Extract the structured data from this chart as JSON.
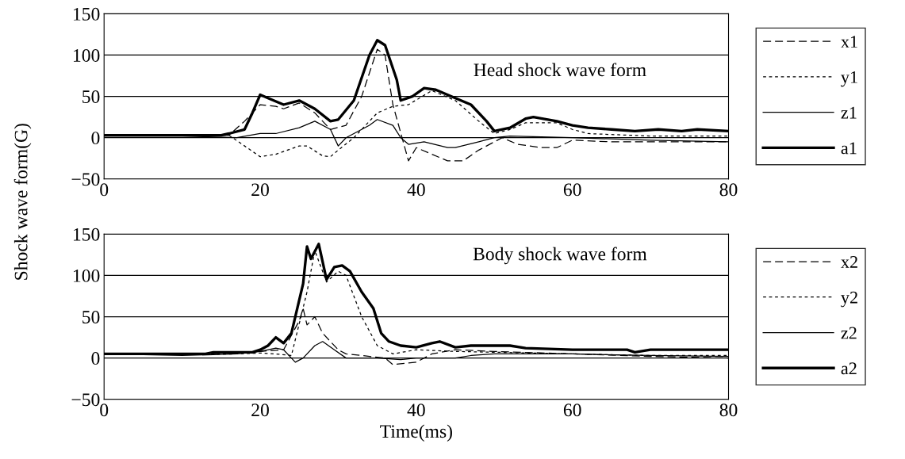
{
  "chart_data": [
    {
      "type": "line",
      "title": "Head shock wave form",
      "ylabel": "Shock wave form(G)",
      "xlim": [
        0,
        80
      ],
      "ylim": [
        -50,
        150
      ],
      "xticks": [
        0,
        20,
        40,
        60,
        80
      ],
      "yticks": [
        -50,
        0,
        50,
        100,
        150
      ],
      "grid": "y",
      "legend": "right",
      "marker": "none",
      "series": [
        {
          "name": "x1",
          "color": "#000000",
          "line_style": "dashed",
          "x": [
            0,
            10,
            16,
            18,
            20,
            22,
            23,
            25,
            27,
            29,
            31,
            33,
            35,
            36,
            37,
            39,
            40,
            42,
            44,
            46,
            48,
            51,
            53,
            56,
            58,
            60,
            65,
            70,
            80
          ],
          "values": [
            3,
            3,
            3,
            20,
            40,
            38,
            35,
            42,
            30,
            10,
            15,
            50,
            107,
            100,
            40,
            -28,
            -12,
            -20,
            -28,
            -28,
            -15,
            0,
            -8,
            -12,
            -12,
            -3,
            -5,
            -5,
            -5
          ]
        },
        {
          "name": "y1",
          "color": "#000000",
          "line_style": "dotted",
          "x": [
            0,
            10,
            16,
            18,
            20,
            22,
            25,
            26,
            28,
            29,
            30,
            32,
            35,
            37,
            39,
            42,
            45,
            48,
            50,
            52,
            54,
            58,
            60,
            62,
            70,
            80
          ],
          "values": [
            3,
            3,
            3,
            -10,
            -23,
            -20,
            -10,
            -10,
            -22,
            -23,
            -15,
            0,
            30,
            38,
            40,
            57,
            45,
            20,
            5,
            10,
            18,
            18,
            10,
            5,
            2,
            2
          ]
        },
        {
          "name": "z1",
          "color": "#000000",
          "line_style": "solid",
          "x": [
            0,
            10,
            17,
            20,
            22,
            25,
            27,
            29,
            30,
            31,
            34,
            35,
            37,
            38,
            39,
            41,
            44,
            45,
            48,
            50,
            52,
            60,
            70,
            80
          ],
          "values": [
            2,
            2,
            0,
            5,
            5,
            12,
            20,
            10,
            -10,
            0,
            15,
            22,
            15,
            0,
            -8,
            -5,
            -12,
            -12,
            -5,
            0,
            2,
            0,
            -3,
            -5
          ]
        },
        {
          "name": "a1",
          "color": "#000000",
          "line_style": "solid",
          "x": [
            0,
            15,
            16,
            18,
            19,
            20,
            21,
            23,
            25,
            27,
            29,
            30,
            32,
            34,
            35,
            36,
            37.5,
            38,
            39.5,
            41,
            42.5,
            45,
            47,
            49,
            50,
            52,
            54,
            55,
            58,
            60,
            62,
            65,
            68,
            71,
            74,
            76,
            80
          ],
          "values": [
            3,
            3,
            5,
            10,
            30,
            52,
            48,
            40,
            45,
            35,
            20,
            22,
            45,
            100,
            118,
            112,
            70,
            45,
            50,
            60,
            58,
            48,
            40,
            20,
            8,
            12,
            23,
            25,
            20,
            15,
            12,
            10,
            8,
            10,
            8,
            10,
            8
          ]
        }
      ]
    },
    {
      "type": "line",
      "title": "Body shock wave form",
      "xlabel": "Time(ms)",
      "xlim": [
        0,
        80
      ],
      "ylim": [
        -50,
        150
      ],
      "xticks": [
        0,
        20,
        40,
        60,
        80
      ],
      "yticks": [
        -50,
        0,
        50,
        100,
        150
      ],
      "grid": "y",
      "legend": "right",
      "marker": "none",
      "series": [
        {
          "name": "x2",
          "color": "#000000",
          "line_style": "dashed",
          "x": [
            0,
            10,
            17,
            20,
            23,
            25,
            25.5,
            26,
            27,
            28,
            30,
            31,
            33,
            36,
            37,
            40,
            42,
            45,
            50,
            60,
            70,
            80
          ],
          "values": [
            5,
            4,
            6,
            8,
            10,
            45,
            60,
            40,
            50,
            30,
            10,
            5,
            3,
            0,
            -8,
            -5,
            5,
            10,
            8,
            5,
            2,
            0
          ]
        },
        {
          "name": "y2",
          "color": "#000000",
          "line_style": "dotted",
          "x": [
            0,
            10,
            17,
            20,
            22,
            24,
            26,
            27,
            28.5,
            30,
            31,
            33,
            35,
            37,
            40,
            45,
            55,
            60,
            70,
            80
          ],
          "values": [
            5,
            4,
            5,
            6,
            5,
            3,
            80,
            130,
            92,
            105,
            100,
            50,
            15,
            5,
            10,
            8,
            6,
            5,
            3,
            3
          ]
        },
        {
          "name": "z2",
          "color": "#000000",
          "line_style": "solid",
          "x": [
            0,
            10,
            17,
            20,
            22,
            23,
            24.5,
            25.5,
            27,
            28,
            29.5,
            31,
            35,
            38,
            40,
            45,
            47,
            50,
            60,
            70,
            80
          ],
          "values": [
            5,
            3,
            5,
            8,
            12,
            10,
            -5,
            0,
            15,
            20,
            10,
            0,
            0,
            -2,
            0,
            0,
            3,
            5,
            5,
            3,
            2
          ]
        },
        {
          "name": "a2",
          "color": "#000000",
          "line_style": "solid",
          "x": [
            0,
            13,
            14,
            19,
            20,
            21,
            22,
            23,
            24,
            25,
            25.5,
            26,
            26.5,
            27.5,
            28.5,
            29.5,
            30.5,
            31.5,
            33,
            34.5,
            35.5,
            36.5,
            38,
            40,
            42,
            43,
            45,
            47,
            52,
            54,
            60,
            67,
            68,
            70,
            80
          ],
          "values": [
            5,
            5,
            7,
            7,
            10,
            15,
            25,
            18,
            30,
            70,
            90,
            135,
            120,
            138,
            95,
            110,
            112,
            105,
            80,
            60,
            30,
            20,
            15,
            13,
            18,
            20,
            13,
            15,
            15,
            12,
            10,
            10,
            7,
            10,
            10
          ]
        }
      ]
    }
  ]
}
